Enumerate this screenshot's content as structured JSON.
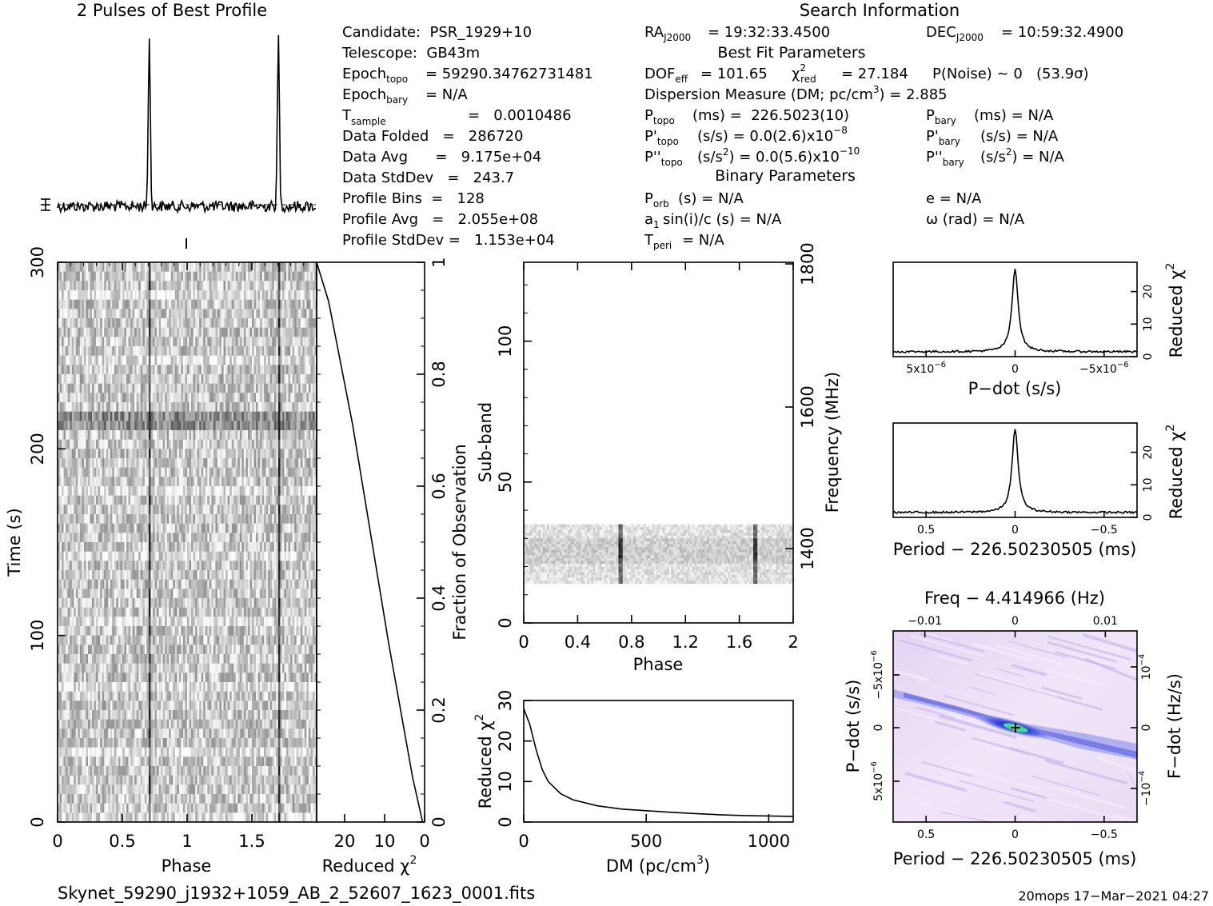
{
  "header": {
    "profile_title": "2 Pulses of Best Profile",
    "search_title": "Search Information",
    "best_fit_title": "Best Fit Parameters",
    "binary_title": "Binary Parameters"
  },
  "info": {
    "candidate": "Candidate:  PSR_1929+10",
    "telescope": "Telescope:  GB43m",
    "epoch_topo": "= 59290.34762731481",
    "epoch_bary": "= N/A",
    "t_sample": "=   0.0010486",
    "data_folded": "Data Folded   =   286720",
    "data_avg": "Data Avg      =   9.175e+04",
    "data_stddev": "Data StdDev   =   243.7",
    "profile_bins": "Profile Bins  =   128",
    "profile_avg": "Profile Avg   =   2.055e+08",
    "profile_stddev": "Profile StdDev =   1.153e+04"
  },
  "search": {
    "ra": "= 19:32:33.4500",
    "dec": "= 10:59:32.4900",
    "dof": "DOF",
    "dof_value": "= 101.65",
    "chi_value": "= 27.184",
    "pnoise": "P(Noise) ~ 0   (53.9σ)",
    "dm": "Dispersion Measure (DM; pc/cm",
    "dm_value": ") = 2.885",
    "ptopo": "(ms) =  226.5023(10)",
    "pbary": "(ms) = N/A",
    "pdot_topo": "(s/s) = 0.0(2.6)x10",
    "pdot_topo_exp": "−8",
    "pdot_bary": "(s/s) = N/A",
    "pddot_topo": "(s/s",
    "pddot_topo_val": ") = 0.0(5.6)x10",
    "pddot_topo_exp": "−10",
    "pddot_bary": "(s/s",
    "pddot_bary_val": ") = N/A",
    "porb": "(s) = N/A",
    "e": "e = N/A",
    "a1sini": "sin(i)/c (s) = N/A",
    "omega": "ω (rad) = N/A",
    "tperi": "= N/A"
  },
  "footer": {
    "filename": "Skynet_59290_j1932+1059_AB_2_52607_1623_0001.fits",
    "stamp": "20mops 17−Mar−2021 04:27"
  },
  "chart_data": [
    {
      "type": "line",
      "title": "2 Pulses of Best Profile",
      "x_range": [
        0,
        2
      ],
      "pulse_phases": [
        0.71,
        1.71
      ],
      "note_values": "two narrow pulses per profile"
    },
    {
      "type": "heatmap",
      "xlabel": "Phase",
      "ylabel": "Time (s)",
      "x_range": [
        0,
        2
      ],
      "y_range": [
        0,
        300
      ],
      "xticks": [
        "0",
        "0.5",
        "1",
        "1.5"
      ],
      "yticks": [
        "0",
        "100",
        "200",
        "300"
      ],
      "pulse_phases": [
        0.71,
        1.71
      ]
    },
    {
      "type": "line",
      "xlabel": "Reduced χ",
      "ylabel": "Fraction of Observation",
      "x_range": [
        27,
        0
      ],
      "y_range": [
        0,
        1
      ],
      "xticks": [
        "20",
        "10",
        "0"
      ],
      "yticks": [
        "0",
        "0.2",
        "0.4",
        "0.6",
        "0.8",
        "1"
      ],
      "x": [
        0.5,
        3,
        6,
        9,
        12,
        15,
        18,
        21,
        24,
        27
      ],
      "y": [
        0.0,
        0.08,
        0.2,
        0.32,
        0.45,
        0.58,
        0.71,
        0.82,
        0.93,
        1.0
      ]
    },
    {
      "type": "heatmap",
      "xlabel": "Phase",
      "ylabel": "Sub-band",
      "ylabel_right": "Frequency (MHz)",
      "x_range": [
        0,
        2
      ],
      "y_range": [
        0,
        128
      ],
      "xticks": [
        "0",
        "0.4",
        "0.8",
        "1.2",
        "1.6",
        "2"
      ],
      "yticks": [
        "0",
        "50",
        "100"
      ],
      "right_ticks": [
        "1400",
        "1600",
        "1800"
      ],
      "band_subbands": [
        14,
        35
      ],
      "pulse_phases": [
        0.72,
        1.72
      ]
    },
    {
      "type": "line",
      "xlabel": "DM (pc/cm",
      "ylabel": "Reduced χ",
      "x_range": [
        0,
        1100
      ],
      "y_range": [
        0,
        30
      ],
      "xticks": [
        "0",
        "500",
        "1000"
      ],
      "yticks": [
        "0",
        "10",
        "20",
        "30"
      ],
      "x": [
        0,
        25,
        50,
        75,
        100,
        150,
        200,
        300,
        400,
        500,
        600,
        700,
        800,
        900,
        1000,
        1100
      ],
      "y": [
        28,
        24,
        18,
        13,
        10,
        7,
        5.5,
        4,
        3.2,
        2.8,
        2.4,
        2.1,
        1.8,
        1.6,
        1.5,
        1.4
      ]
    },
    {
      "type": "line",
      "xlabel": "P−dot (s/s)",
      "ylabel": "Reduced χ",
      "x_range": [
        9e-06,
        -9e-06
      ],
      "y_range": [
        0,
        29
      ],
      "xticks": [
        "5x10",
        "0",
        "−5x10"
      ],
      "xtick_exp": "−6",
      "yticks": [
        "0",
        "10",
        "20"
      ],
      "peak": 27.2
    },
    {
      "type": "line",
      "xlabel": "Period − 226.50230505 (ms)",
      "ylabel": "Reduced χ",
      "x_range": [
        0.75,
        -0.75
      ],
      "y_range": [
        0,
        29
      ],
      "xticks": [
        "0.5",
        "0",
        "−0.5"
      ],
      "yticks": [
        "0",
        "10",
        "20"
      ],
      "peak": 27.2
    },
    {
      "type": "heatmap",
      "xlabel": "Period − 226.50230505 (ms)",
      "xlabel_top": "Freq − 4.414966 (Hz)",
      "ylabel": "P−dot (s/s)",
      "ylabel_right": "F−dot (Hz/s)",
      "xticks": [
        "0.5",
        "0",
        "−0.5"
      ],
      "xticks_top": [
        "−0.01",
        "0",
        "0.01"
      ],
      "yticks": [
        "−5x10",
        "0",
        "5x10"
      ],
      "ytick_exp": "−6",
      "right_ticks": [
        "10",
        "0",
        "−10"
      ],
      "right_exp": "−4"
    }
  ]
}
